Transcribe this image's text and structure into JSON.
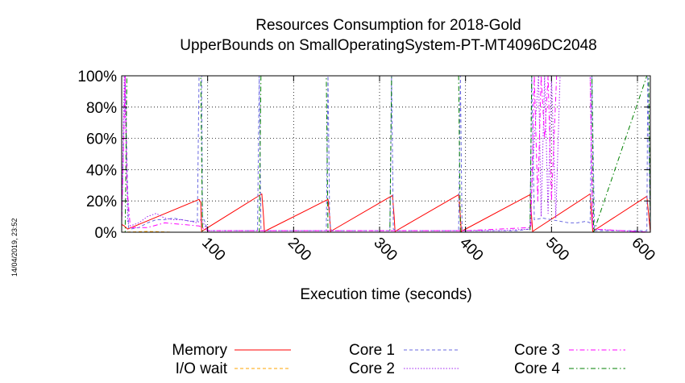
{
  "chart_data": {
    "type": "line",
    "title": [
      "Resources Consumption for 2018-Gold",
      "UpperBounds on SmallOperatingSystem-PT-MT4096DC2048"
    ],
    "xlabel": "Execution time (seconds)",
    "ylabel": "",
    "xlim": [
      0,
      615
    ],
    "ylim": [
      0,
      100
    ],
    "xticks": [
      100,
      200,
      300,
      400,
      500,
      600
    ],
    "yticks": [
      0,
      20,
      40,
      60,
      80,
      100
    ],
    "ytick_labels": [
      "0%",
      "20%",
      "40%",
      "60%",
      "80%",
      "100%"
    ],
    "grid": true,
    "legend_position": "bottom",
    "timestamp": "14/04/2019, 23:52",
    "series": [
      {
        "name": "Memory",
        "color": "#ff0000",
        "style": "solid",
        "x": [
          0,
          3,
          7,
          90,
          92,
          93,
          163,
          165,
          166,
          240,
          242,
          243,
          315,
          317,
          318,
          392,
          394,
          395,
          475,
          477,
          478,
          545,
          547,
          548,
          611,
          615
        ],
        "y": [
          5,
          4,
          2,
          21,
          19,
          0.5,
          24.5,
          10,
          0.5,
          21,
          10,
          0.5,
          23.5,
          10,
          0.5,
          24,
          10,
          0.5,
          24,
          9,
          0.5,
          24.5,
          8,
          0.5,
          23,
          0
        ]
      },
      {
        "name": "I/O wait",
        "color": "#ffa500",
        "style": "dashed",
        "x": [
          0,
          30,
          60,
          100,
          200,
          300,
          400,
          500,
          615
        ],
        "y": [
          0,
          0.5,
          0,
          0,
          0,
          0,
          0,
          0,
          0
        ]
      },
      {
        "name": "Core 1",
        "color": "#6a6ae0",
        "style": "dashed",
        "x": [
          0,
          4,
          6,
          8,
          10,
          20,
          30,
          40,
          50,
          60,
          70,
          80,
          88,
          90,
          92,
          93,
          94,
          96,
          100,
          120,
          140,
          158,
          160,
          162,
          164,
          170,
          200,
          238,
          240,
          242,
          244,
          260,
          290,
          312,
          314,
          316,
          320,
          360,
          392,
          394,
          396,
          420,
          460,
          475,
          477,
          480,
          490,
          500,
          510,
          520,
          530,
          540,
          545,
          547,
          550,
          580,
          611,
          612,
          615
        ],
        "y": [
          8,
          100,
          50,
          3,
          2,
          3,
          6,
          8,
          8,
          9,
          8,
          7,
          7,
          100,
          100,
          100,
          8,
          8,
          1,
          1,
          1,
          1,
          100,
          2,
          1,
          1,
          1,
          1,
          100,
          6,
          1,
          1,
          1,
          1,
          100,
          2,
          1,
          1,
          1,
          100,
          1,
          1,
          1,
          2,
          100,
          8,
          9,
          8,
          7,
          6,
          6,
          7,
          6,
          100,
          1,
          1,
          1,
          100,
          0
        ]
      },
      {
        "name": "Core 2",
        "color": "#a020f0",
        "style": "dotted",
        "x": [
          0,
          3,
          5,
          7,
          10,
          20,
          30,
          40,
          50,
          60,
          70,
          80,
          88,
          92,
          96,
          100,
          140,
          160,
          200,
          240,
          280,
          320,
          360,
          400,
          440,
          475,
          480,
          485,
          488,
          492,
          496,
          500,
          505,
          510,
          520,
          530,
          545,
          548,
          580,
          615
        ],
        "y": [
          5,
          100,
          60,
          6,
          4,
          6,
          10,
          12,
          9,
          8,
          8,
          7,
          6,
          8,
          5,
          1,
          1,
          1,
          1,
          1,
          1,
          1,
          1,
          1,
          1,
          2,
          60,
          100,
          10,
          100,
          12,
          100,
          9,
          100,
          100,
          100,
          100,
          2,
          1,
          0
        ]
      },
      {
        "name": "Core 3",
        "color": "#ff00ff",
        "style": "dashdot",
        "x": [
          0,
          4,
          6,
          10,
          30,
          50,
          70,
          90,
          100,
          200,
          300,
          318,
          330,
          400,
          476,
          480,
          484,
          488,
          492,
          496,
          500,
          506,
          510,
          515,
          545,
          548,
          615
        ],
        "y": [
          3,
          100,
          30,
          3,
          3,
          6,
          5,
          4,
          1,
          1,
          1,
          1,
          1,
          1,
          3,
          100,
          20,
          100,
          60,
          100,
          20,
          100,
          100,
          100,
          100,
          2,
          0
        ]
      },
      {
        "name": "Core 4",
        "color": "#008000",
        "style": "dashdot",
        "x": [
          0,
          4,
          6,
          90,
          92,
          94,
          160,
          162,
          164,
          238,
          240,
          242,
          312,
          314,
          316,
          390,
          392,
          394,
          475,
          477,
          479,
          545,
          547,
          549,
          611,
          613,
          615
        ],
        "y": [
          0,
          0,
          100,
          100,
          100,
          0,
          0,
          100,
          100,
          100,
          0,
          0,
          0,
          100,
          100,
          100,
          100,
          0,
          0,
          100,
          100,
          100,
          100,
          0,
          100,
          100,
          0
        ]
      }
    ]
  }
}
